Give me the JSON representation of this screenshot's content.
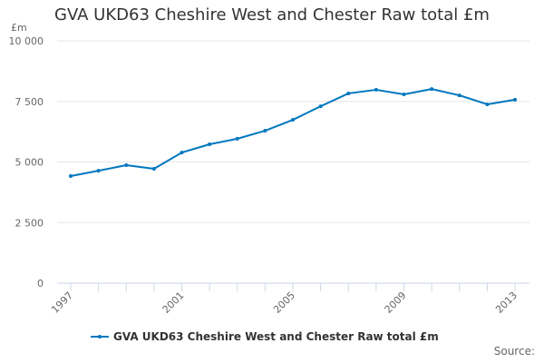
{
  "header": {
    "title": "GVA UKD63 Cheshire West and Chester Raw total £m",
    "unit_label": "£m"
  },
  "legend": {
    "label": "GVA UKD63 Cheshire West and Chester Raw total £m",
    "color": "#0077bf"
  },
  "footer": {
    "source_label": "Source:"
  },
  "chart_data": {
    "type": "line",
    "title": "GVA UKD63 Cheshire West and Chester Raw total £m",
    "xlabel": "",
    "ylabel": "£m",
    "ylim": [
      0,
      10000
    ],
    "y_ticks": [
      0,
      2500,
      5000,
      7500,
      10000
    ],
    "y_tick_labels": [
      "0",
      "2 500",
      "5 000",
      "7 500",
      "10 000"
    ],
    "x_tick_labels": [
      "1997",
      "2001",
      "2005",
      "2009",
      "2013"
    ],
    "grid": true,
    "legend_position": "bottom",
    "categories": [
      "1997",
      "1998",
      "1999",
      "2000",
      "2001",
      "2002",
      "2003",
      "2004",
      "2005",
      "2006",
      "2007",
      "2008",
      "2009",
      "2010",
      "2011",
      "2012",
      "2013"
    ],
    "series": [
      {
        "name": "GVA UKD63 Cheshire West and Chester Raw total £m",
        "color": "#0077bf",
        "values": [
          4420,
          4640,
          4870,
          4720,
          5390,
          5730,
          5960,
          6290,
          6740,
          7300,
          7830,
          7980,
          7790,
          8010,
          7750,
          7380,
          7570
        ]
      }
    ]
  }
}
